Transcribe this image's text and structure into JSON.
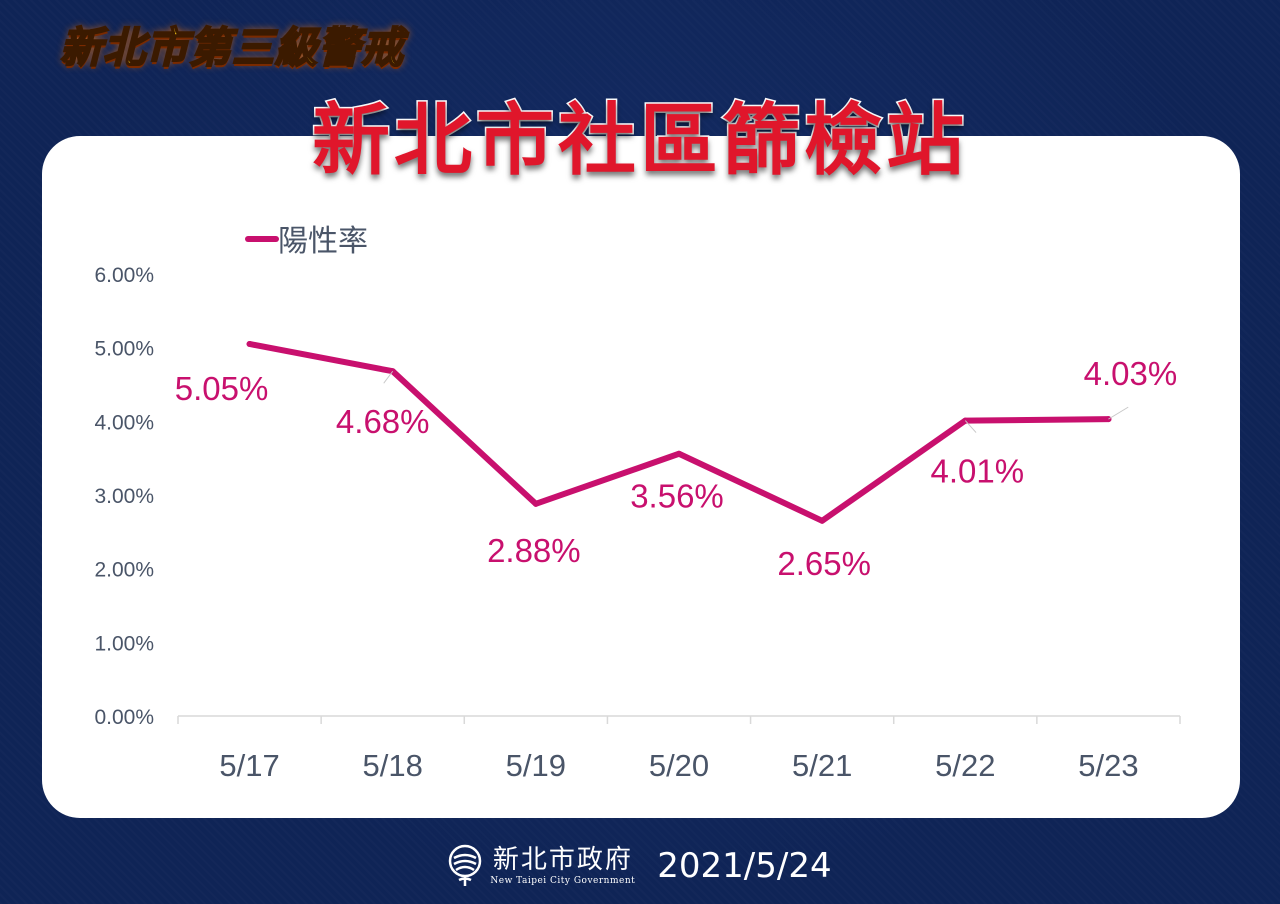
{
  "header": {
    "kicker": "新北市第三級警戒",
    "title": "新北市社區篩檢站"
  },
  "footer": {
    "org_name": "新北市政府",
    "org_name_en": "New Taipei City Government",
    "date": "2021/5/24"
  },
  "colors": {
    "background": "#0f2456",
    "series": "#c8106e",
    "axis_text": "#4a5568",
    "kicker": "#ffd21a",
    "title": "#e0162b"
  },
  "chart_data": {
    "type": "line",
    "title": "",
    "xlabel": "",
    "ylabel": "",
    "categories": [
      "5/17",
      "5/18",
      "5/19",
      "5/20",
      "5/21",
      "5/22",
      "5/23"
    ],
    "series": [
      {
        "name": "陽性率",
        "values": [
          5.05,
          4.68,
          2.88,
          3.56,
          2.65,
          4.01,
          4.03
        ],
        "labels": [
          "5.05%",
          "4.68%",
          "2.88%",
          "3.56%",
          "2.65%",
          "4.01%",
          "4.03%"
        ]
      }
    ],
    "ylim": [
      0,
      6
    ],
    "y_ticks": [
      "0.00%",
      "1.00%",
      "2.00%",
      "3.00%",
      "4.00%",
      "5.00%",
      "6.00%"
    ],
    "grid": false,
    "legend_position": "top-left"
  }
}
